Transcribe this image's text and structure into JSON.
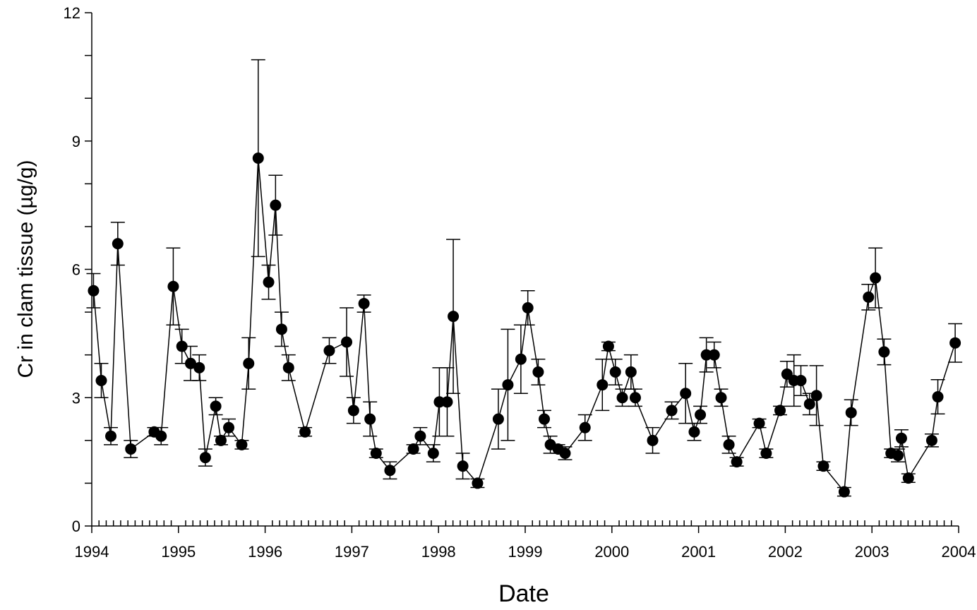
{
  "chart_data": {
    "type": "scatter",
    "x_label": "Date",
    "y_label": "Cr in clam tissue (µg/g)",
    "xlim": [
      1994,
      2004
    ],
    "xticks": [
      1994,
      1995,
      1996,
      1997,
      1998,
      1999,
      2000,
      2001,
      2002,
      2003,
      2004
    ],
    "xminor_divisions": 12,
    "ylim": [
      0,
      12
    ],
    "yticks": [
      0,
      3,
      6,
      9,
      12
    ],
    "yminor_divisions": 3,
    "color": "#000000",
    "connect": true,
    "x": [
      1994.02,
      1994.11,
      1994.22,
      1994.3,
      1994.45,
      1994.72,
      1994.8,
      1994.94,
      1995.04,
      1995.14,
      1995.24,
      1995.31,
      1995.43,
      1995.49,
      1995.58,
      1995.73,
      1995.81,
      1995.92,
      1996.04,
      1996.12,
      1996.19,
      1996.27,
      1996.46,
      1996.74,
      1996.94,
      1997.02,
      1997.14,
      1997.21,
      1997.28,
      1997.44,
      1997.71,
      1997.79,
      1997.94,
      1998.01,
      1998.1,
      1998.17,
      1998.28,
      1998.45,
      1998.69,
      1998.8,
      1998.95,
      1999.03,
      1999.15,
      1999.22,
      1999.29,
      1999.38,
      1999.46,
      1999.69,
      1999.89,
      1999.96,
      2000.04,
      2000.12,
      2000.22,
      2000.27,
      2000.47,
      2000.69,
      2000.85,
      2000.95,
      2001.02,
      2001.09,
      2001.18,
      2001.26,
      2001.35,
      2001.44,
      2001.7,
      2001.78,
      2001.94,
      2002.02,
      2002.1,
      2002.18,
      2002.28,
      2002.36,
      2002.44,
      2002.68,
      2002.76,
      2002.96,
      2003.04,
      2003.14,
      2003.22,
      2003.3,
      2003.34,
      2003.42,
      2003.69,
      2003.76,
      2003.96
    ],
    "values": [
      5.5,
      3.4,
      2.1,
      6.6,
      1.8,
      2.2,
      2.1,
      5.6,
      4.2,
      3.8,
      3.7,
      1.6,
      2.8,
      2.0,
      2.3,
      1.9,
      3.8,
      8.6,
      5.7,
      7.5,
      4.6,
      3.7,
      2.2,
      4.1,
      4.3,
      2.7,
      5.2,
      2.5,
      1.7,
      1.3,
      1.8,
      2.1,
      1.7,
      2.9,
      2.9,
      4.9,
      1.4,
      1.0,
      2.5,
      3.3,
      3.9,
      5.1,
      3.6,
      2.5,
      1.9,
      1.8,
      1.7,
      2.3,
      3.3,
      4.2,
      3.6,
      3.0,
      3.6,
      3.0,
      2.0,
      2.7,
      3.1,
      2.2,
      2.6,
      4.0,
      4.0,
      3.0,
      1.9,
      1.5,
      2.4,
      1.7,
      2.7,
      3.55,
      3.4,
      3.4,
      2.85,
      3.05,
      1.4,
      0.8,
      2.65,
      5.35,
      5.8,
      4.07,
      1.7,
      1.65,
      2.05,
      1.12,
      2.0,
      3.02,
      4.28
    ],
    "errors": [
      0.4,
      0.4,
      0.2,
      0.5,
      0.2,
      0.1,
      0.2,
      0.9,
      0.4,
      0.4,
      0.3,
      0.2,
      0.2,
      0.1,
      0.2,
      0.1,
      0.6,
      2.3,
      0.4,
      0.7,
      0.4,
      0.3,
      0.1,
      0.3,
      0.8,
      0.3,
      0.2,
      0.4,
      0.1,
      0.2,
      0.1,
      0.2,
      0.2,
      0.8,
      0.8,
      1.8,
      0.3,
      0.1,
      0.7,
      1.3,
      0.8,
      0.4,
      0.3,
      0.2,
      0.2,
      0.1,
      0.15,
      0.3,
      0.6,
      0.1,
      0.3,
      0.2,
      0.4,
      0.2,
      0.3,
      0.2,
      0.7,
      0.2,
      0.2,
      0.4,
      0.3,
      0.2,
      0.2,
      0.1,
      0.1,
      0.1,
      0.1,
      0.3,
      0.6,
      0.35,
      0.25,
      0.7,
      0.1,
      0.1,
      0.3,
      0.3,
      0.7,
      0.3,
      0.1,
      0.15,
      0.2,
      0.1,
      0.15,
      0.4,
      0.45
    ]
  }
}
